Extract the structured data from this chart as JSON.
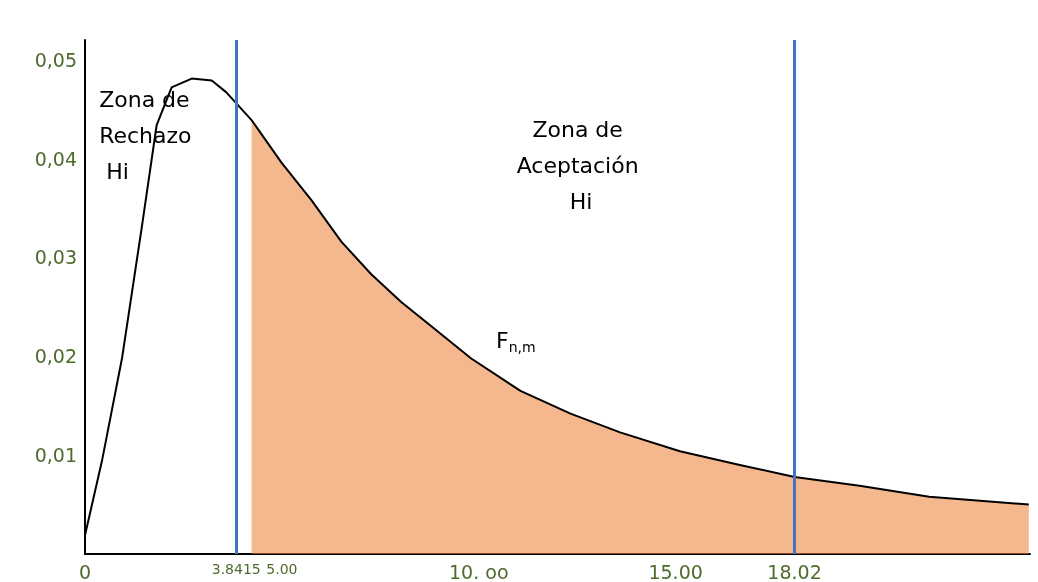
{
  "chart_data": {
    "type": "line",
    "xlim": [
      0,
      24
    ],
    "ylim": [
      0,
      0.052
    ],
    "xticks": [
      0,
      3.8415,
      {
        "value": 5,
        "label": "5.00"
      },
      {
        "value": 10,
        "label": "10. oo"
      },
      {
        "value": 15,
        "label": "15.00"
      },
      18.02
    ],
    "yticks": [
      {
        "value": 0.01,
        "label": "0,01"
      },
      {
        "value": 0.02,
        "label": "0,02"
      },
      {
        "value": 0.03,
        "label": "0,03"
      },
      {
        "value": 0.04,
        "label": "0,04"
      },
      {
        "value": 0.05,
        "label": "0,05"
      }
    ],
    "series": [
      {
        "type": "area",
        "color": "#ed7d31",
        "x": [
          4.23,
          4.99,
          5.75,
          6.51,
          7.27,
          8.03,
          8.78,
          9.8,
          11.06,
          12.33,
          13.59,
          15.11,
          16.63,
          18.02,
          19.67,
          21.44,
          23.97
        ],
        "values": [
          0.0439,
          0.0396,
          0.0358,
          0.0316,
          0.0283,
          0.0255,
          0.0231,
          0.0198,
          0.0165,
          0.0142,
          0.0123,
          0.0104,
          0.009,
          0.0078,
          0.0069,
          0.0058,
          0.005
        ]
      },
      {
        "type": "line",
        "color": "#000000",
        "x": [
          0,
          0.43,
          0.94,
          1.44,
          1.82,
          2.2,
          2.71,
          3.22,
          3.59,
          4.23,
          4.99,
          5.75,
          6.51,
          7.27,
          8.03,
          8.78,
          9.8,
          11.06,
          12.33,
          13.59,
          15.11,
          16.63,
          18.02,
          19.67,
          21.44,
          23.97
        ],
        "values": [
          0.0019,
          0.0094,
          0.0198,
          0.033,
          0.0434,
          0.0472,
          0.0481,
          0.0479,
          0.0467,
          0.0439,
          0.0396,
          0.0358,
          0.0316,
          0.0283,
          0.0255,
          0.0231,
          0.0198,
          0.0165,
          0.0142,
          0.0123,
          0.0104,
          0.009,
          0.0078,
          0.0069,
          0.0058,
          0.005
        ]
      }
    ],
    "ref_lines": [
      {
        "axis": "x",
        "value": 3.8415,
        "color": "#4472c4"
      },
      {
        "axis": "x",
        "value": 18.02,
        "color": "#4472c4"
      }
    ],
    "annotations": [
      "Zona de Rechazo Hi",
      "Zona de Aceptación Hi",
      "F$_{n,m}$"
    ],
    "marker": "none",
    "line_style": "solid",
    "grid": false
  }
}
